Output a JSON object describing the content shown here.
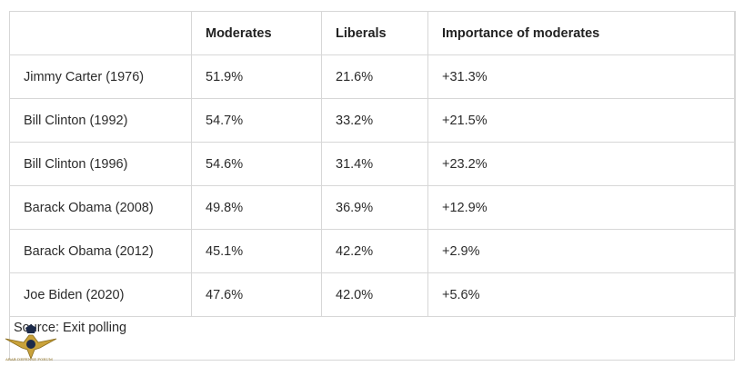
{
  "table": {
    "headers": [
      "",
      "Moderates",
      "Liberals",
      "Importance of moderates"
    ],
    "rows": [
      [
        "Jimmy Carter (1976)",
        "51.9%",
        "21.6%",
        "+31.3%"
      ],
      [
        "Bill Clinton (1992)",
        "54.7%",
        "33.2%",
        "+21.5%"
      ],
      [
        "Bill Clinton (1996)",
        "54.6%",
        "31.4%",
        "+23.2%"
      ],
      [
        "Barack Obama (2008)",
        "49.8%",
        "36.9%",
        "+12.9%"
      ],
      [
        "Barack Obama (2012)",
        "45.1%",
        "42.2%",
        "+2.9%"
      ],
      [
        "Joe Biden (2020)",
        "47.6%",
        "42.0%",
        "+5.6%"
      ]
    ]
  },
  "source": "Source: Exit polling",
  "watermark": {
    "text": "ARAB DEFENSE FORUM",
    "icon": "eagle-logo-icon",
    "accent_color": "#c9a23a"
  }
}
